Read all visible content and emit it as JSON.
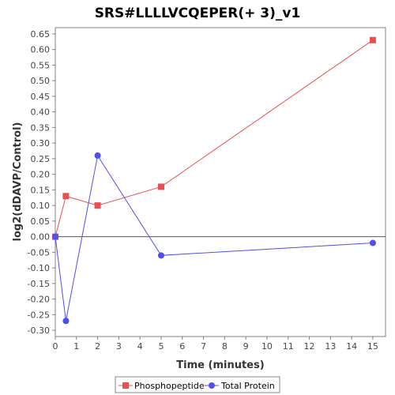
{
  "chart_data": {
    "type": "line",
    "title": "SRS#LLLLVCQEPER(+ 3)_v1",
    "xlabel": "Time (minutes)",
    "ylabel": "log2(dDAVP/Control)",
    "xlim": [
      0,
      15.6
    ],
    "ylim": [
      -0.32,
      0.67
    ],
    "xticks": [
      0,
      1,
      2,
      3,
      4,
      5,
      6,
      7,
      8,
      9,
      10,
      11,
      12,
      13,
      14,
      15
    ],
    "yticks": [
      -0.3,
      -0.25,
      -0.2,
      -0.15,
      -0.1,
      -0.05,
      0.0,
      0.05,
      0.1,
      0.15,
      0.2,
      0.25,
      0.3,
      0.35,
      0.4,
      0.45,
      0.5,
      0.55,
      0.6,
      0.65
    ],
    "zero_line": true,
    "grid": false,
    "legend_position": "bottom",
    "series": [
      {
        "name": "Phosphopeptide",
        "color": "#e85050",
        "marker": "square",
        "x": [
          0,
          0.5,
          2,
          5,
          15
        ],
        "y": [
          0.0,
          0.13,
          0.1,
          0.16,
          0.63
        ]
      },
      {
        "name": "Total Protein",
        "color": "#5050e8",
        "marker": "circle",
        "x": [
          0,
          0.5,
          2,
          5,
          15
        ],
        "y": [
          0.0,
          -0.27,
          0.26,
          -0.06,
          -0.02
        ]
      }
    ]
  }
}
